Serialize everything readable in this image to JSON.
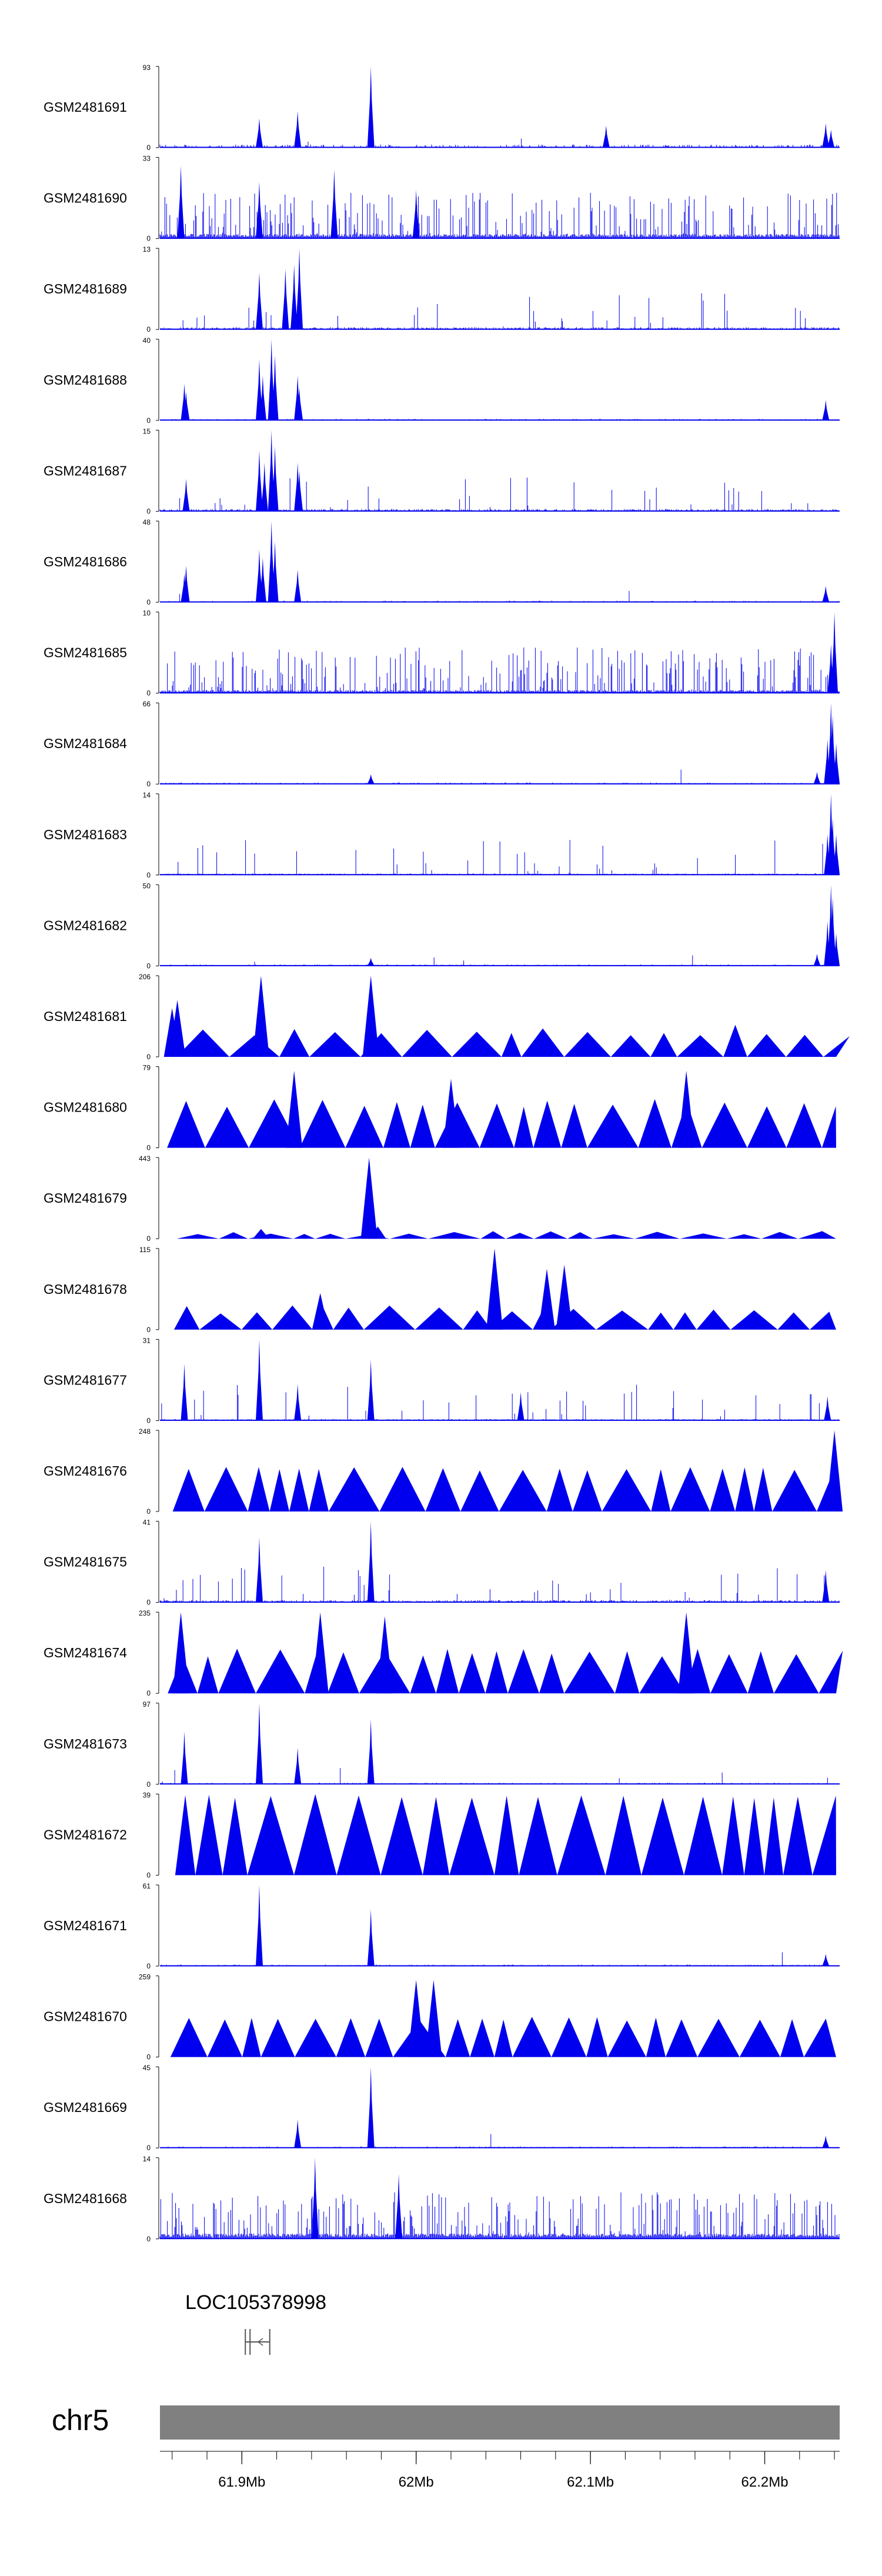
{
  "chart_data": {
    "type": "area",
    "genome_axis": {
      "chromosome": "chr5",
      "tick_labels": [
        "61.9Mb",
        "62Mb",
        "62.1Mb",
        "62.2Mb"
      ],
      "labeled_ticks_mb": [
        61.9,
        62.0,
        62.1,
        62.2
      ],
      "range_mb": [
        61.853,
        62.243
      ]
    },
    "gene": {
      "name": "LOC105378998",
      "start_mb": 61.902,
      "end_mb": 61.916,
      "strand": "-"
    },
    "colors": {
      "signal": "#0000ee",
      "ideogram": "#808080",
      "text": "#000000"
    },
    "tracks": [
      {
        "name": "GSM2481691",
        "ymax": 93,
        "ymin": 0,
        "style": "sparse",
        "baseline": 2,
        "peaks": [
          [
            61.91,
            0.36
          ],
          [
            61.932,
            0.45
          ],
          [
            61.974,
            1.0
          ],
          [
            62.109,
            0.27
          ],
          [
            62.235,
            0.3
          ],
          [
            62.238,
            0.22
          ]
        ]
      },
      {
        "name": "GSM2481690",
        "ymax": 33,
        "ymin": 0,
        "style": "dense",
        "baseline": 3,
        "peaks": [
          [
            61.865,
            0.9
          ],
          [
            61.91,
            0.7
          ],
          [
            61.953,
            0.85
          ],
          [
            62.0,
            0.6
          ]
        ]
      },
      {
        "name": "GSM2481689",
        "ymax": 13,
        "ymin": 0,
        "style": "medium",
        "baseline": 1.5,
        "peaks": [
          [
            61.91,
            0.7
          ],
          [
            61.925,
            0.75
          ],
          [
            61.933,
            1.0
          ],
          [
            61.93,
            0.8
          ]
        ]
      },
      {
        "name": "GSM2481688",
        "ymax": 40,
        "ymin": 0,
        "style": "sparse",
        "baseline": 1,
        "peaks": [
          [
            61.868,
            0.35
          ],
          [
            61.867,
            0.45
          ],
          [
            61.91,
            0.75
          ],
          [
            61.912,
            0.55
          ],
          [
            61.917,
            1.0
          ],
          [
            61.919,
            0.8
          ],
          [
            61.932,
            0.55
          ],
          [
            61.933,
            0.4
          ],
          [
            62.235,
            0.25
          ]
        ]
      },
      {
        "name": "GSM2481687",
        "ymax": 15,
        "ymin": 0,
        "style": "medium",
        "baseline": 1.5,
        "peaks": [
          [
            61.868,
            0.4
          ],
          [
            61.91,
            0.75
          ],
          [
            61.913,
            0.6
          ],
          [
            61.917,
            1.0
          ],
          [
            61.919,
            0.8
          ],
          [
            61.932,
            0.6
          ],
          [
            61.933,
            0.5
          ]
        ]
      },
      {
        "name": "GSM2481686",
        "ymax": 48,
        "ymin": 0,
        "style": "sparse",
        "baseline": 1,
        "peaks": [
          [
            61.868,
            0.45
          ],
          [
            61.867,
            0.35
          ],
          [
            61.91,
            0.65
          ],
          [
            61.912,
            0.55
          ],
          [
            61.917,
            1.0
          ],
          [
            61.919,
            0.75
          ],
          [
            61.932,
            0.4
          ],
          [
            62.235,
            0.2
          ]
        ]
      },
      {
        "name": "GSM2481685",
        "ymax": 10,
        "ymin": 0,
        "style": "dense",
        "baseline": 2,
        "peaks": [
          [
            62.24,
            1.0
          ],
          [
            62.238,
            0.6
          ]
        ]
      },
      {
        "name": "GSM2481684",
        "ymax": 66,
        "ymin": 0,
        "style": "sparse",
        "baseline": 1,
        "peaks": [
          [
            61.974,
            0.12
          ],
          [
            62.23,
            0.15
          ],
          [
            62.236,
            0.55
          ],
          [
            62.238,
            1.0
          ],
          [
            62.239,
            0.85
          ],
          [
            62.241,
            0.5
          ]
        ]
      },
      {
        "name": "GSM2481683",
        "ymax": 14,
        "ymin": 0,
        "style": "medium",
        "baseline": 1,
        "peaks": [
          [
            62.236,
            0.5
          ],
          [
            62.238,
            1.0
          ],
          [
            62.239,
            0.7
          ],
          [
            62.241,
            0.5
          ]
        ]
      },
      {
        "name": "GSM2481682",
        "ymax": 50,
        "ymin": 0,
        "style": "sparse",
        "baseline": 1,
        "peaks": [
          [
            61.974,
            0.1
          ],
          [
            62.23,
            0.15
          ],
          [
            62.236,
            0.55
          ],
          [
            62.238,
            1.0
          ],
          [
            62.239,
            0.85
          ],
          [
            62.241,
            0.4
          ]
        ]
      },
      {
        "name": "GSM2481681",
        "ymax": 206,
        "ymin": 0,
        "style": "triangles",
        "seed": 11,
        "tri_min": 0.25,
        "tri_max": 0.4,
        "peaks": [
          [
            61.86,
            0.6
          ],
          [
            61.863,
            0.7
          ],
          [
            61.911,
            1.0
          ],
          [
            61.974,
            1.0
          ]
        ]
      },
      {
        "name": "GSM2481680",
        "ymax": 79,
        "ymin": 0,
        "style": "triangles",
        "seed": 23,
        "tri_min": 0.5,
        "tri_max": 0.6,
        "peaks": [
          [
            61.93,
            0.95
          ],
          [
            62.02,
            0.85
          ],
          [
            62.155,
            0.95
          ]
        ]
      },
      {
        "name": "GSM2481679",
        "ymax": 443,
        "ymin": 0,
        "style": "triangles",
        "seed": 37,
        "tri_min": 0.05,
        "tri_max": 0.1,
        "peaks": [
          [
            61.911,
            0.12
          ],
          [
            61.973,
            1.0
          ],
          [
            61.978,
            0.15
          ]
        ]
      },
      {
        "name": "GSM2481678",
        "ymax": 115,
        "ymin": 0,
        "style": "triangles",
        "seed": 41,
        "tri_min": 0.2,
        "tri_max": 0.3,
        "peaks": [
          [
            61.945,
            0.45
          ],
          [
            62.045,
            1.0
          ],
          [
            62.075,
            0.75
          ],
          [
            62.085,
            0.8
          ]
        ]
      },
      {
        "name": "GSM2481677",
        "ymax": 31,
        "ymin": 0,
        "style": "medium",
        "baseline": 1,
        "peaks": [
          [
            61.867,
            0.7
          ],
          [
            61.91,
            1.0
          ],
          [
            61.932,
            0.45
          ],
          [
            61.974,
            0.75
          ],
          [
            62.06,
            0.35
          ],
          [
            62.236,
            0.3
          ]
        ]
      },
      {
        "name": "GSM2481676",
        "ymax": 248,
        "ymin": 0,
        "style": "triangles",
        "seed": 53,
        "tri_min": 0.5,
        "tri_max": 0.55,
        "peaks": [
          [
            62.24,
            1.0
          ]
        ]
      },
      {
        "name": "GSM2481675",
        "ymax": 41,
        "ymin": 0,
        "style": "medium",
        "baseline": 1.5,
        "peaks": [
          [
            61.91,
            0.8
          ],
          [
            61.974,
            1.0
          ],
          [
            62.235,
            0.4
          ]
        ]
      },
      {
        "name": "GSM2481674",
        "ymax": 235,
        "ymin": 0,
        "style": "triangles",
        "seed": 67,
        "tri_min": 0.45,
        "tri_max": 0.55,
        "peaks": [
          [
            61.865,
            1.0
          ],
          [
            61.945,
            1.0
          ],
          [
            61.982,
            0.95
          ],
          [
            62.155,
            1.0
          ]
        ]
      },
      {
        "name": "GSM2481673",
        "ymax": 97,
        "ymin": 0,
        "style": "sparse",
        "baseline": 1,
        "peaks": [
          [
            61.867,
            0.65
          ],
          [
            61.91,
            1.0
          ],
          [
            61.932,
            0.45
          ],
          [
            61.974,
            0.8
          ]
        ]
      },
      {
        "name": "GSM2481672",
        "ymax": 39,
        "ymin": 0,
        "style": "triangles",
        "seed": 79,
        "tri_min": 0.95,
        "tri_max": 1.0,
        "peaks": []
      },
      {
        "name": "GSM2481671",
        "ymax": 61,
        "ymin": 0,
        "style": "sparse",
        "baseline": 1,
        "peaks": [
          [
            61.91,
            1.0
          ],
          [
            61.974,
            0.7
          ],
          [
            62.235,
            0.15
          ]
        ]
      },
      {
        "name": "GSM2481670",
        "ymax": 259,
        "ymin": 0,
        "style": "triangles",
        "seed": 83,
        "tri_min": 0.45,
        "tri_max": 0.5,
        "peaks": [
          [
            62.0,
            0.95
          ],
          [
            62.01,
            0.95
          ]
        ]
      },
      {
        "name": "GSM2481669",
        "ymax": 45,
        "ymin": 0,
        "style": "sparse",
        "baseline": 1,
        "peaks": [
          [
            61.932,
            0.35
          ],
          [
            61.974,
            1.0
          ],
          [
            62.235,
            0.15
          ]
        ]
      },
      {
        "name": "GSM2481668",
        "ymax": 14,
        "ymin": 0,
        "style": "dense",
        "baseline": 3.5,
        "peaks": [
          [
            61.942,
            1.0
          ],
          [
            61.99,
            0.8
          ]
        ]
      }
    ]
  }
}
